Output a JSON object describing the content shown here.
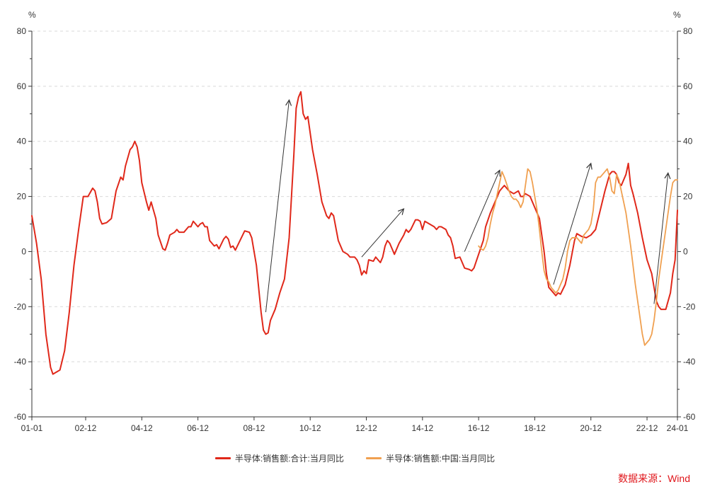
{
  "chart_data": {
    "type": "line",
    "title": "",
    "xlabel": "",
    "ylabel_left": "%",
    "ylabel_right": "%",
    "ylim": [
      -60,
      80
    ],
    "yticks": [
      80,
      60,
      40,
      20,
      0,
      -20,
      -40,
      -60
    ],
    "xlim": [
      "2001-01",
      "2024-01"
    ],
    "xticks": [
      "01-01",
      "02-12",
      "04-12",
      "06-12",
      "08-12",
      "10-12",
      "12-12",
      "14-12",
      "16-12",
      "18-12",
      "20-12",
      "22-12",
      "24-01"
    ],
    "grid": "horizontal dashed",
    "legend_position": "bottom-center",
    "series": [
      {
        "name": "半导体:销售额:合计:当月同比",
        "color": "#e0281a",
        "points": [
          [
            "2001-01",
            13
          ],
          [
            "2001-03",
            3
          ],
          [
            "2001-05",
            -10
          ],
          [
            "2001-07",
            -30
          ],
          [
            "2001-09",
            -42
          ],
          [
            "2001-10",
            -44.5
          ],
          [
            "2001-12",
            -43.5
          ],
          [
            "2002-01",
            -43
          ],
          [
            "2002-03",
            -36
          ],
          [
            "2002-05",
            -22
          ],
          [
            "2002-07",
            -5
          ],
          [
            "2002-09",
            8
          ],
          [
            "2002-11",
            20
          ],
          [
            "2002-12",
            20
          ],
          [
            "2003-01",
            20
          ],
          [
            "2003-03",
            23
          ],
          [
            "2003-04",
            22
          ],
          [
            "2003-05",
            18
          ],
          [
            "2003-06",
            12
          ],
          [
            "2003-07",
            10
          ],
          [
            "2003-09",
            10.5
          ],
          [
            "2003-11",
            12
          ],
          [
            "2004-01",
            22
          ],
          [
            "2004-03",
            27
          ],
          [
            "2004-04",
            26
          ],
          [
            "2004-05",
            31
          ],
          [
            "2004-07",
            37
          ],
          [
            "2004-08",
            38
          ],
          [
            "2004-09",
            40
          ],
          [
            "2004-10",
            38
          ],
          [
            "2004-11",
            33
          ],
          [
            "2004-12",
            25
          ],
          [
            "2005-02",
            18
          ],
          [
            "2005-03",
            15
          ],
          [
            "2005-04",
            18
          ],
          [
            "2005-06",
            12
          ],
          [
            "2005-07",
            6
          ],
          [
            "2005-09",
            1
          ],
          [
            "2005-10",
            0.5
          ],
          [
            "2005-11",
            3
          ],
          [
            "2005-12",
            6
          ],
          [
            "2006-02",
            7
          ],
          [
            "2006-03",
            8
          ],
          [
            "2006-04",
            7
          ],
          [
            "2006-06",
            7
          ],
          [
            "2006-08",
            9
          ],
          [
            "2006-09",
            9
          ],
          [
            "2006-10",
            11
          ],
          [
            "2006-12",
            9
          ],
          [
            "2007-01",
            10
          ],
          [
            "2007-02",
            10.5
          ],
          [
            "2007-03",
            9
          ],
          [
            "2007-04",
            9
          ],
          [
            "2007-05",
            4
          ],
          [
            "2007-07",
            2
          ],
          [
            "2007-08",
            2.5
          ],
          [
            "2007-09",
            1
          ],
          [
            "2007-11",
            4.5
          ],
          [
            "2007-12",
            5.5
          ],
          [
            "2008-01",
            4.5
          ],
          [
            "2008-02",
            1.5
          ],
          [
            "2008-03",
            2
          ],
          [
            "2008-04",
            0.5
          ],
          [
            "2008-06",
            4
          ],
          [
            "2008-08",
            7.5
          ],
          [
            "2008-10",
            7
          ],
          [
            "2008-11",
            5
          ],
          [
            "2009-01",
            -5
          ],
          [
            "2009-03",
            -22
          ],
          [
            "2009-04",
            -28.5
          ],
          [
            "2009-05",
            -30
          ],
          [
            "2009-06",
            -29.5
          ],
          [
            "2009-07",
            -25
          ],
          [
            "2009-09",
            -21
          ],
          [
            "2009-10",
            -18
          ],
          [
            "2009-11",
            -15
          ],
          [
            "2010-01",
            -10
          ],
          [
            "2010-03",
            5
          ],
          [
            "2010-05",
            35
          ],
          [
            "2010-06",
            52
          ],
          [
            "2010-07",
            56
          ],
          [
            "2010-08",
            58
          ],
          [
            "2010-09",
            50
          ],
          [
            "2010-10",
            48
          ],
          [
            "2010-11",
            49
          ],
          [
            "2011-01",
            37
          ],
          [
            "2011-03",
            28
          ],
          [
            "2011-05",
            18
          ],
          [
            "2011-07",
            13
          ],
          [
            "2011-08",
            12
          ],
          [
            "2011-09",
            14
          ],
          [
            "2011-10",
            13
          ],
          [
            "2011-12",
            4
          ],
          [
            "2012-02",
            0
          ],
          [
            "2012-04",
            -1
          ],
          [
            "2012-05",
            -2
          ],
          [
            "2012-07",
            -2
          ],
          [
            "2012-08",
            -3
          ],
          [
            "2012-09",
            -5
          ],
          [
            "2012-10",
            -8.5
          ],
          [
            "2012-11",
            -7
          ],
          [
            "2012-12",
            -8
          ],
          [
            "2013-01",
            -3
          ],
          [
            "2013-03",
            -3.5
          ],
          [
            "2013-04",
            -2
          ],
          [
            "2013-05",
            -3
          ],
          [
            "2013-06",
            -4
          ],
          [
            "2013-07",
            -2
          ],
          [
            "2013-08",
            2
          ],
          [
            "2013-09",
            4
          ],
          [
            "2013-10",
            3
          ],
          [
            "2013-11",
            1
          ],
          [
            "2013-12",
            -1
          ],
          [
            "2014-02",
            3
          ],
          [
            "2014-04",
            6
          ],
          [
            "2014-05",
            8
          ],
          [
            "2014-06",
            7
          ],
          [
            "2014-07",
            8
          ],
          [
            "2014-09",
            11.5
          ],
          [
            "2014-10",
            11.5
          ],
          [
            "2014-11",
            11
          ],
          [
            "2014-12",
            8
          ],
          [
            "2015-01",
            11
          ],
          [
            "2015-03",
            10
          ],
          [
            "2015-05",
            9
          ],
          [
            "2015-06",
            8
          ],
          [
            "2015-07",
            9
          ],
          [
            "2015-08",
            9
          ],
          [
            "2015-10",
            8
          ],
          [
            "2015-11",
            6
          ],
          [
            "2015-12",
            5
          ],
          [
            "2016-01",
            2
          ],
          [
            "2016-02",
            -2.5
          ],
          [
            "2016-04",
            -2
          ],
          [
            "2016-06",
            -6
          ],
          [
            "2016-08",
            -6.5
          ],
          [
            "2016-09",
            -7
          ],
          [
            "2016-10",
            -6
          ],
          [
            "2016-12",
            -1
          ],
          [
            "2017-02",
            4
          ],
          [
            "2017-03",
            9
          ],
          [
            "2017-05",
            14
          ],
          [
            "2017-07",
            18
          ],
          [
            "2017-09",
            22
          ],
          [
            "2017-11",
            24
          ],
          [
            "2018-01",
            22
          ],
          [
            "2018-03",
            21
          ],
          [
            "2018-05",
            22
          ],
          [
            "2018-06",
            20
          ],
          [
            "2018-07",
            20
          ],
          [
            "2018-08",
            21
          ],
          [
            "2018-10",
            20
          ],
          [
            "2018-12",
            16
          ],
          [
            "2019-02",
            12
          ],
          [
            "2019-04",
            0
          ],
          [
            "2019-05",
            -8
          ],
          [
            "2019-06",
            -13
          ],
          [
            "2019-07",
            -14
          ],
          [
            "2019-08",
            -15
          ],
          [
            "2019-09",
            -16
          ],
          [
            "2019-10",
            -15
          ],
          [
            "2019-11",
            -15.5
          ],
          [
            "2020-01",
            -12
          ],
          [
            "2020-03",
            -5
          ],
          [
            "2020-05",
            4
          ],
          [
            "2020-06",
            6.5
          ],
          [
            "2020-08",
            5.5
          ],
          [
            "2020-10",
            5
          ],
          [
            "2020-12",
            6
          ],
          [
            "2021-02",
            8
          ],
          [
            "2021-04",
            15
          ],
          [
            "2021-06",
            22
          ],
          [
            "2021-08",
            28
          ],
          [
            "2021-09",
            29
          ],
          [
            "2021-10",
            29
          ],
          [
            "2021-11",
            28
          ],
          [
            "2021-12",
            25
          ],
          [
            "2022-01",
            24
          ],
          [
            "2022-03",
            28
          ],
          [
            "2022-04",
            32
          ],
          [
            "2022-05",
            24
          ],
          [
            "2022-06",
            21
          ],
          [
            "2022-08",
            14
          ],
          [
            "2022-10",
            5
          ],
          [
            "2022-12",
            -3
          ],
          [
            "2023-02",
            -8
          ],
          [
            "2023-04",
            -18
          ],
          [
            "2023-05",
            -20
          ],
          [
            "2023-06",
            -21
          ],
          [
            "2023-08",
            -21
          ],
          [
            "2023-10",
            -15
          ],
          [
            "2023-11",
            -8
          ],
          [
            "2023-12",
            -3
          ],
          [
            "2024-01",
            15
          ]
        ]
      },
      {
        "name": "半导体:销售额:中国:当月同比",
        "color": "#f0a050",
        "points": [
          [
            "2016-12",
            2
          ],
          [
            "2017-01",
            1
          ],
          [
            "2017-02",
            0.5
          ],
          [
            "2017-03",
            2
          ],
          [
            "2017-04",
            5
          ],
          [
            "2017-05",
            10
          ],
          [
            "2017-06",
            14
          ],
          [
            "2017-07",
            17
          ],
          [
            "2017-08",
            21
          ],
          [
            "2017-09",
            25
          ],
          [
            "2017-10",
            29
          ],
          [
            "2017-11",
            27
          ],
          [
            "2018-01",
            22
          ],
          [
            "2018-02",
            20
          ],
          [
            "2018-03",
            19
          ],
          [
            "2018-04",
            19
          ],
          [
            "2018-05",
            18
          ],
          [
            "2018-06",
            16
          ],
          [
            "2018-07",
            18
          ],
          [
            "2018-08",
            24
          ],
          [
            "2018-09",
            30
          ],
          [
            "2018-10",
            29
          ],
          [
            "2018-11",
            25
          ],
          [
            "2018-12",
            20
          ],
          [
            "2019-01",
            15
          ],
          [
            "2019-02",
            8
          ],
          [
            "2019-03",
            0
          ],
          [
            "2019-04",
            -7
          ],
          [
            "2019-05",
            -10
          ],
          [
            "2019-06",
            -11
          ],
          [
            "2019-07",
            -13
          ],
          [
            "2019-08",
            -14
          ],
          [
            "2019-09",
            -15
          ],
          [
            "2019-10",
            -14
          ],
          [
            "2019-11",
            -12
          ],
          [
            "2019-12",
            -10
          ],
          [
            "2020-01",
            -6
          ],
          [
            "2020-02",
            0
          ],
          [
            "2020-03",
            4
          ],
          [
            "2020-04",
            5
          ],
          [
            "2020-05",
            5
          ],
          [
            "2020-06",
            5
          ],
          [
            "2020-07",
            4
          ],
          [
            "2020-08",
            3
          ],
          [
            "2020-09",
            6
          ],
          [
            "2020-10",
            7
          ],
          [
            "2020-11",
            8
          ],
          [
            "2020-12",
            10
          ],
          [
            "2021-01",
            15
          ],
          [
            "2021-02",
            25
          ],
          [
            "2021-03",
            27
          ],
          [
            "2021-04",
            27
          ],
          [
            "2021-05",
            28
          ],
          [
            "2021-06",
            29
          ],
          [
            "2021-07",
            30
          ],
          [
            "2021-08",
            27
          ],
          [
            "2021-09",
            22
          ],
          [
            "2021-10",
            21
          ],
          [
            "2021-11",
            28
          ],
          [
            "2021-12",
            26
          ],
          [
            "2022-01",
            22
          ],
          [
            "2022-02",
            18
          ],
          [
            "2022-03",
            14
          ],
          [
            "2022-04",
            8
          ],
          [
            "2022-05",
            2
          ],
          [
            "2022-06",
            -5
          ],
          [
            "2022-07",
            -12
          ],
          [
            "2022-08",
            -18
          ],
          [
            "2022-09",
            -24
          ],
          [
            "2022-10",
            -30
          ],
          [
            "2022-11",
            -34
          ],
          [
            "2022-12",
            -33
          ],
          [
            "2023-01",
            -32
          ],
          [
            "2023-02",
            -30
          ],
          [
            "2023-03",
            -25
          ],
          [
            "2023-04",
            -18
          ],
          [
            "2023-05",
            -10
          ],
          [
            "2023-06",
            -4
          ],
          [
            "2023-07",
            2
          ],
          [
            "2023-08",
            8
          ],
          [
            "2023-09",
            14
          ],
          [
            "2023-10",
            20
          ],
          [
            "2023-11",
            25
          ],
          [
            "2023-12",
            26
          ],
          [
            "2024-01",
            26
          ]
        ]
      }
    ],
    "annotations": [
      {
        "type": "arrow",
        "from": [
          "2009-05",
          -22
        ],
        "to": [
          "2010-03",
          55
        ]
      },
      {
        "type": "arrow",
        "from": [
          "2012-10",
          -2
        ],
        "to": [
          "2014-04",
          15.5
        ]
      },
      {
        "type": "arrow",
        "from": [
          "2016-06",
          0
        ],
        "to": [
          "2017-09",
          29.5
        ]
      },
      {
        "type": "arrow",
        "from": [
          "2019-08",
          -12
        ],
        "to": [
          "2020-12",
          32
        ]
      },
      {
        "type": "arrow",
        "from": [
          "2023-03",
          -19
        ],
        "to": [
          "2023-09",
          28.5
        ]
      }
    ]
  },
  "legend": {
    "series1": "半导体:销售额:合计:当月同比",
    "series2": "半导体:销售额:中国:当月同比"
  },
  "source": "数据来源：Wind"
}
